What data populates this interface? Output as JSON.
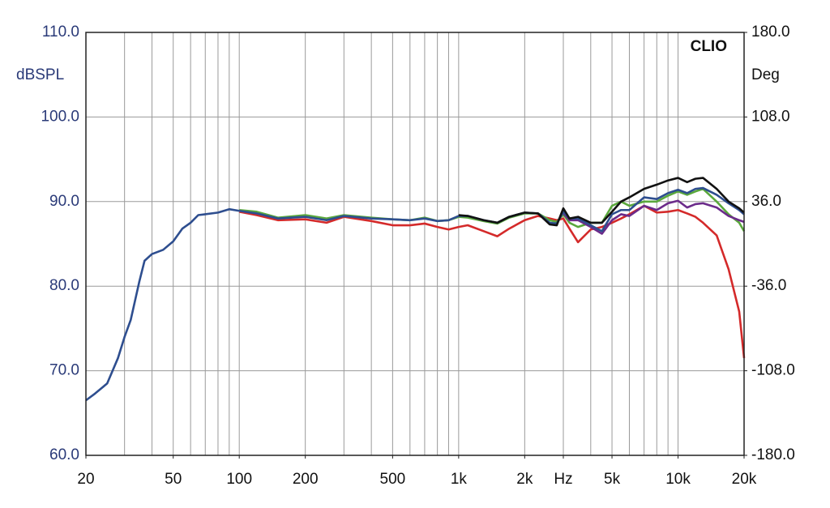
{
  "chart_data": {
    "type": "line",
    "y_label": "dBSPL",
    "y2_label": "Deg",
    "annotation": "CLIO",
    "log_x": true,
    "grid": true,
    "xlim": [
      20,
      20000
    ],
    "ylim": [
      60,
      110
    ],
    "y2lim": [
      -180,
      180
    ],
    "xticks": [
      20,
      50,
      100,
      200,
      500,
      {
        "value": 1000,
        "label": "1k"
      },
      {
        "value": 2000,
        "label": "2k"
      },
      {
        "value": 3000,
        "label": "Hz"
      },
      {
        "value": 5000,
        "label": "5k"
      },
      {
        "value": 10000,
        "label": "10k"
      },
      {
        "value": 20000,
        "label": "20k"
      }
    ],
    "xgrid": [
      30,
      40,
      50,
      60,
      70,
      80,
      90,
      100,
      200,
      300,
      400,
      500,
      600,
      700,
      800,
      900,
      1000,
      2000,
      3000,
      4000,
      5000,
      6000,
      7000,
      8000,
      9000,
      10000
    ],
    "yticks": [
      {
        "value": 60,
        "label": "60.0"
      },
      {
        "value": 70,
        "label": "70.0"
      },
      {
        "value": 80,
        "label": "80.0"
      },
      {
        "value": 90,
        "label": "90.0"
      },
      {
        "value": 100,
        "label": "100.0"
      },
      {
        "value": 110,
        "label": "110.0"
      }
    ],
    "y2ticks": [
      {
        "value": -180,
        "label": "-180.0"
      },
      {
        "value": -108,
        "label": "-108.0"
      },
      {
        "value": -36,
        "label": "-36.0"
      },
      {
        "value": 36,
        "label": "36.0"
      },
      {
        "value": 108,
        "label": "108.0"
      },
      {
        "value": 180,
        "label": "180.0"
      }
    ],
    "x": [
      20,
      22,
      25,
      28,
      30,
      32,
      35,
      37,
      40,
      45,
      50,
      55,
      60,
      65,
      70,
      80,
      90,
      100,
      120,
      150,
      200,
      250,
      300,
      400,
      500,
      600,
      700,
      800,
      900,
      1000,
      1100,
      1300,
      1500,
      1700,
      2000,
      2300,
      2600,
      2800,
      3000,
      3200,
      3500,
      4000,
      4500,
      5000,
      5500,
      6000,
      7000,
      8000,
      9000,
      10000,
      11000,
      12000,
      13000,
      15000,
      17000,
      19000,
      20000
    ],
    "series": [
      {
        "color": "#d42a2a",
        "values": [
          null,
          null,
          null,
          null,
          null,
          null,
          null,
          null,
          null,
          null,
          null,
          null,
          null,
          null,
          null,
          null,
          null,
          88.8,
          88.4,
          87.8,
          87.9,
          87.5,
          88.2,
          87.7,
          87.2,
          87.2,
          87.4,
          87,
          86.7,
          87,
          87.2,
          86.5,
          85.9,
          86.8,
          87.8,
          88.3,
          88,
          87.8,
          88,
          86.8,
          85.2,
          86.7,
          87,
          87.5,
          88,
          88.5,
          89.5,
          88.7,
          88.8,
          89,
          88.6,
          88.2,
          87.5,
          86,
          82,
          77,
          71.5
        ]
      },
      {
        "color": "#5aa83c",
        "values": [
          null,
          null,
          null,
          null,
          null,
          null,
          null,
          null,
          null,
          null,
          null,
          null,
          null,
          null,
          null,
          null,
          null,
          89,
          88.8,
          88.1,
          88.4,
          88,
          88.4,
          88.1,
          87.9,
          87.8,
          88.1,
          87.7,
          87.8,
          88.2,
          88.1,
          87.7,
          87.4,
          88.1,
          88.6,
          88.6,
          87.8,
          87.6,
          88.5,
          87.5,
          87,
          87.5,
          87.5,
          89.5,
          90,
          89.5,
          90,
          90,
          90.7,
          91.2,
          90.8,
          91.2,
          91.5,
          90,
          88.5,
          87.5,
          86.5
        ]
      },
      {
        "color": "#6b2b8a",
        "values": [
          null,
          null,
          null,
          null,
          null,
          null,
          null,
          null,
          null,
          null,
          null,
          null,
          null,
          null,
          null,
          null,
          null,
          null,
          null,
          null,
          null,
          null,
          null,
          null,
          null,
          null,
          null,
          null,
          null,
          null,
          null,
          null,
          null,
          null,
          null,
          null,
          null,
          null,
          88.6,
          87.8,
          87.8,
          87,
          86.2,
          87.8,
          88.5,
          88.3,
          89.5,
          89,
          89.8,
          90.1,
          89.3,
          89.7,
          89.8,
          89.3,
          88.3,
          87.8,
          87.6
        ]
      },
      {
        "color": "#2e4e8f",
        "values": [
          66.5,
          67.3,
          68.5,
          71.5,
          74,
          76,
          80.5,
          83,
          83.8,
          84.3,
          85.3,
          86.8,
          87.5,
          88.4,
          88.5,
          88.7,
          89.1,
          88.9,
          88.6,
          88,
          88.2,
          87.8,
          88.3,
          88,
          87.9,
          87.8,
          88,
          87.7,
          87.8,
          88.3,
          88.3,
          87.8,
          87.5,
          88.2,
          88.7,
          88.6,
          87.5,
          87.4,
          88.8,
          88,
          88,
          87.2,
          86.5,
          88.5,
          89,
          89,
          90.5,
          90.3,
          91,
          91.4,
          91,
          91.5,
          91.6,
          90.8,
          89.8,
          89,
          88.5
        ]
      },
      {
        "color": "#111111",
        "values": [
          null,
          null,
          null,
          null,
          null,
          null,
          null,
          null,
          null,
          null,
          null,
          null,
          null,
          null,
          null,
          null,
          null,
          null,
          null,
          null,
          null,
          null,
          null,
          null,
          null,
          null,
          null,
          null,
          null,
          88.4,
          88.3,
          87.8,
          87.5,
          88.2,
          88.7,
          88.6,
          87.3,
          87.2,
          89.2,
          88,
          88.2,
          87.5,
          87.5,
          88.8,
          90,
          90.5,
          91.5,
          92,
          92.5,
          92.8,
          92.3,
          92.7,
          92.8,
          91.5,
          90,
          89.2,
          88.7
        ]
      }
    ]
  }
}
